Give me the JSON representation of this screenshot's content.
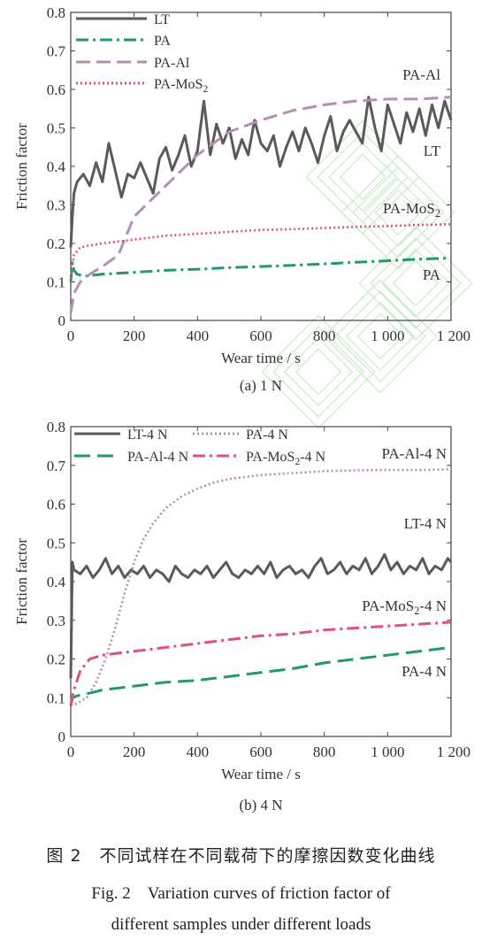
{
  "colors": {
    "LT": "#5a5a58",
    "PA": "#1f9a6a",
    "PA-Al": "#b58eb3",
    "PA-MoS2": "#df4f86",
    "axis": "#444444",
    "watermark": "#b6e8b0"
  },
  "chart_data": [
    {
      "type": "line",
      "caption": "(a) 1 N",
      "xlabel": "Wear time / s",
      "ylabel": "Friction factor",
      "xlim": [
        0,
        1200
      ],
      "ylim": [
        0,
        0.8
      ],
      "xticks": [
        "0",
        "200",
        "400",
        "600",
        "800",
        "1 000",
        "1 200"
      ],
      "yticks": [
        "0",
        "0.1",
        "0.2",
        "0.3",
        "0.4",
        "0.5",
        "0.6",
        "0.7",
        "0.8"
      ],
      "legend": [
        "LT",
        "PA",
        "PA-Al",
        "PA-MoS2"
      ],
      "legend_position": "top-left",
      "curve_labels": [
        {
          "text": "PA-Al",
          "series": "PA-Al"
        },
        {
          "text": "LT",
          "series": "LT"
        },
        {
          "text": "PA-MoS2",
          "series": "PA-MoS2"
        },
        {
          "text": "PA",
          "series": "PA"
        }
      ],
      "series": [
        {
          "name": "LT",
          "style": "solid",
          "x": [
            0,
            5,
            10,
            20,
            40,
            60,
            80,
            100,
            120,
            140,
            160,
            180,
            200,
            220,
            240,
            260,
            280,
            300,
            320,
            340,
            360,
            380,
            400,
            420,
            440,
            460,
            480,
            500,
            520,
            540,
            560,
            580,
            600,
            620,
            640,
            660,
            680,
            700,
            720,
            740,
            760,
            780,
            800,
            820,
            840,
            860,
            880,
            900,
            920,
            940,
            960,
            980,
            1000,
            1020,
            1040,
            1060,
            1080,
            1100,
            1120,
            1140,
            1160,
            1180,
            1200
          ],
          "y": [
            0.19,
            0.27,
            0.33,
            0.36,
            0.38,
            0.35,
            0.41,
            0.36,
            0.46,
            0.39,
            0.32,
            0.38,
            0.37,
            0.41,
            0.37,
            0.33,
            0.42,
            0.45,
            0.39,
            0.43,
            0.48,
            0.4,
            0.44,
            0.57,
            0.43,
            0.51,
            0.46,
            0.5,
            0.42,
            0.47,
            0.43,
            0.52,
            0.46,
            0.44,
            0.48,
            0.4,
            0.45,
            0.49,
            0.44,
            0.5,
            0.46,
            0.41,
            0.48,
            0.53,
            0.44,
            0.49,
            0.52,
            0.49,
            0.46,
            0.58,
            0.5,
            0.44,
            0.56,
            0.51,
            0.46,
            0.54,
            0.49,
            0.55,
            0.48,
            0.56,
            0.5,
            0.57,
            0.52
          ]
        },
        {
          "name": "PA",
          "style": "dashdot",
          "x": [
            0,
            5,
            10,
            20,
            40,
            100,
            200,
            300,
            400,
            500,
            600,
            700,
            800,
            900,
            1000,
            1100,
            1200
          ],
          "y": [
            0.1,
            0.15,
            0.13,
            0.12,
            0.115,
            0.12,
            0.125,
            0.13,
            0.133,
            0.137,
            0.14,
            0.143,
            0.147,
            0.151,
            0.155,
            0.159,
            0.162
          ]
        },
        {
          "name": "PA-Al",
          "style": "dash",
          "x": [
            0,
            10,
            30,
            60,
            100,
            150,
            200,
            250,
            300,
            350,
            400,
            450,
            500,
            600,
            700,
            800,
            900,
            1000,
            1100,
            1200
          ],
          "y": [
            0.02,
            0.07,
            0.1,
            0.12,
            0.14,
            0.17,
            0.27,
            0.31,
            0.35,
            0.39,
            0.43,
            0.46,
            0.49,
            0.52,
            0.545,
            0.56,
            0.57,
            0.575,
            0.575,
            0.58
          ]
        },
        {
          "name": "PA-MoS2",
          "style": "dot",
          "x": [
            0,
            10,
            30,
            60,
            100,
            150,
            200,
            300,
            400,
            500,
            600,
            700,
            800,
            900,
            1000,
            1100,
            1200
          ],
          "y": [
            0.11,
            0.17,
            0.19,
            0.195,
            0.2,
            0.205,
            0.21,
            0.22,
            0.225,
            0.23,
            0.235,
            0.237,
            0.24,
            0.243,
            0.245,
            0.248,
            0.25
          ]
        }
      ]
    },
    {
      "type": "line",
      "caption": "(b) 4 N",
      "xlabel": "Wear time / s",
      "ylabel": "Friction factor",
      "xlim": [
        0,
        1200
      ],
      "ylim": [
        0,
        0.8
      ],
      "xticks": [
        "0",
        "200",
        "400",
        "600",
        "800",
        "1 000",
        "1 200"
      ],
      "yticks": [
        "0",
        "0.1",
        "0.2",
        "0.3",
        "0.4",
        "0.5",
        "0.6",
        "0.7",
        "0.8"
      ],
      "legend": [
        "LT-4 N",
        "PA-Al-4 N",
        "PA-4 N",
        "PA-MoS2-4 N"
      ],
      "legend_position": "top",
      "curve_labels": [
        {
          "text": "PA-Al-4 N",
          "series": "PA-Al-4 N"
        },
        {
          "text": "LT-4 N",
          "series": "LT-4 N"
        },
        {
          "text": "PA-MoS2-4 N",
          "series": "PA-MoS2-4 N"
        },
        {
          "text": "PA-4 N",
          "series": "PA-4 N"
        }
      ],
      "series": [
        {
          "name": "LT-4 N",
          "style": "solid",
          "x": [
            0,
            5,
            10,
            30,
            50,
            70,
            90,
            110,
            130,
            150,
            170,
            190,
            210,
            230,
            250,
            270,
            290,
            310,
            330,
            350,
            370,
            390,
            410,
            430,
            450,
            470,
            490,
            510,
            530,
            550,
            570,
            590,
            610,
            630,
            650,
            670,
            690,
            710,
            730,
            750,
            770,
            790,
            810,
            830,
            850,
            870,
            890,
            910,
            930,
            950,
            970,
            990,
            1010,
            1030,
            1050,
            1070,
            1090,
            1110,
            1130,
            1150,
            1170,
            1190,
            1200
          ],
          "y": [
            0.15,
            0.45,
            0.43,
            0.42,
            0.44,
            0.41,
            0.43,
            0.46,
            0.42,
            0.44,
            0.41,
            0.43,
            0.42,
            0.44,
            0.41,
            0.43,
            0.42,
            0.4,
            0.44,
            0.42,
            0.41,
            0.43,
            0.42,
            0.44,
            0.41,
            0.43,
            0.45,
            0.42,
            0.41,
            0.43,
            0.42,
            0.44,
            0.42,
            0.45,
            0.41,
            0.43,
            0.44,
            0.42,
            0.43,
            0.41,
            0.44,
            0.46,
            0.42,
            0.43,
            0.45,
            0.42,
            0.44,
            0.43,
            0.46,
            0.42,
            0.44,
            0.47,
            0.43,
            0.45,
            0.42,
            0.44,
            0.43,
            0.46,
            0.42,
            0.44,
            0.43,
            0.46,
            0.45
          ]
        },
        {
          "name": "PA-Al-4 N",
          "style": "dot",
          "x": [
            0,
            20,
            50,
            80,
            110,
            140,
            170,
            200,
            230,
            260,
            300,
            350,
            400,
            450,
            500,
            600,
            700,
            800,
            900,
            1000,
            1100,
            1200
          ],
          "y": [
            0.08,
            0.085,
            0.1,
            0.14,
            0.2,
            0.28,
            0.37,
            0.45,
            0.51,
            0.55,
            0.59,
            0.62,
            0.64,
            0.655,
            0.665,
            0.675,
            0.68,
            0.685,
            0.687,
            0.688,
            0.688,
            0.69
          ]
        },
        {
          "name": "PA-4 N",
          "style": "longdash",
          "x": [
            0,
            5,
            20,
            50,
            100,
            200,
            300,
            400,
            500,
            600,
            700,
            800,
            900,
            1000,
            1100,
            1200
          ],
          "y": [
            0.08,
            0.1,
            0.105,
            0.11,
            0.12,
            0.13,
            0.14,
            0.145,
            0.155,
            0.165,
            0.175,
            0.19,
            0.2,
            0.21,
            0.22,
            0.23
          ]
        },
        {
          "name": "PA-MoS2-4 N",
          "style": "dashdot",
          "x": [
            0,
            10,
            30,
            60,
            100,
            150,
            200,
            300,
            400,
            500,
            600,
            700,
            800,
            900,
            1000,
            1100,
            1200
          ],
          "y": [
            0.08,
            0.12,
            0.17,
            0.2,
            0.21,
            0.215,
            0.22,
            0.23,
            0.24,
            0.25,
            0.26,
            0.265,
            0.275,
            0.28,
            0.285,
            0.29,
            0.295
          ]
        }
      ]
    }
  ],
  "caption": {
    "cn": "图 2　不同试样在不同载荷下的摩擦因数变化曲线",
    "en_line1": "Fig. 2　Variation curves of friction factor of",
    "en_line2": "different samples under different loads"
  }
}
